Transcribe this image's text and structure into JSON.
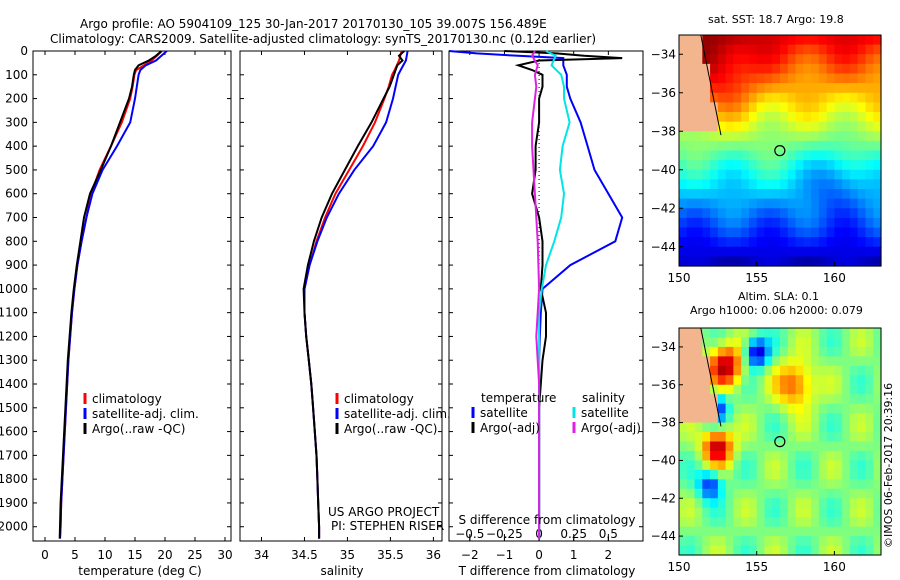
{
  "header": {
    "line1": "Argo profile: AO 5904109_125 30-Jan-2017 20170130_105 39.007S 156.489E",
    "line2": "Climatology: CARS2009. Satellite-adjusted climatology: synTS_20170130.nc (0.12d earlier)"
  },
  "colors": {
    "climatology": "#ff0000",
    "satellite": "#0000ff",
    "argo": "#000000",
    "salinity_satellite": "#00e5e5",
    "salinity_argo": "#e020e0",
    "land": "#f2b58e"
  },
  "chart_data": [
    {
      "type": "line",
      "id": "temperature",
      "xlabel": "temperature (deg C)",
      "xlim": [
        -2,
        31
      ],
      "xticks": [
        0,
        5,
        10,
        15,
        20,
        25,
        30
      ],
      "ylim": [
        2060,
        0
      ],
      "yticks": [
        0,
        100,
        200,
        300,
        400,
        500,
        600,
        700,
        800,
        900,
        1000,
        1100,
        1200,
        1300,
        1400,
        1500,
        1600,
        1700,
        1800,
        1900,
        2000
      ],
      "legend": [
        "climatology",
        "satellite-adj. clim.",
        "Argo(..raw -QC)"
      ],
      "series": [
        {
          "name": "climatology",
          "color": "#ff0000",
          "depth": [
            0,
            40,
            60,
            80,
            100,
            150,
            200,
            300,
            400,
            500,
            600,
            700,
            800,
            900,
            1000,
            1100,
            1200,
            1300,
            1400,
            1500,
            1600,
            1700,
            1800,
            1900,
            2000,
            2050
          ],
          "values": [
            19.5,
            17.8,
            16.5,
            15.2,
            14.9,
            14.6,
            14.2,
            12.8,
            11.0,
            9.1,
            7.7,
            6.9,
            6.1,
            5.4,
            4.9,
            4.5,
            4.2,
            3.9,
            3.7,
            3.5,
            3.3,
            3.1,
            2.9,
            2.7,
            2.6,
            2.5
          ]
        },
        {
          "name": "satellite-adj. clim.",
          "color": "#0000ff",
          "depth": [
            0,
            40,
            60,
            80,
            100,
            150,
            200,
            300,
            400,
            500,
            600,
            700,
            800,
            900,
            1000,
            1100,
            1200,
            1300,
            1400,
            1500,
            1600,
            1700,
            1800,
            1900,
            2000,
            2050
          ],
          "values": [
            20.3,
            18.5,
            16.8,
            15.9,
            15.6,
            15.3,
            15.0,
            14.2,
            12.0,
            9.6,
            7.9,
            6.9,
            6.1,
            5.4,
            4.9,
            4.5,
            4.2,
            3.9,
            3.7,
            3.5,
            3.3,
            3.1,
            2.9,
            2.7,
            2.6,
            2.5
          ]
        },
        {
          "name": "Argo(..raw -QC)",
          "color": "#000000",
          "depth": [
            0,
            20,
            40,
            60,
            80,
            100,
            150,
            200,
            300,
            400,
            500,
            600,
            700,
            800,
            900,
            1000,
            1100,
            1200,
            1300,
            1400,
            1500,
            1600,
            1700,
            1800,
            1900,
            2000,
            2050
          ],
          "values": [
            19.4,
            18.5,
            17.3,
            15.6,
            15.0,
            14.8,
            14.5,
            14.0,
            12.5,
            11.0,
            9.3,
            7.5,
            6.5,
            5.9,
            5.3,
            4.8,
            4.4,
            4.1,
            3.8,
            3.6,
            3.4,
            3.2,
            3.0,
            2.8,
            2.6,
            2.5,
            2.45
          ]
        }
      ]
    },
    {
      "type": "line",
      "id": "salinity",
      "xlabel": "salinity",
      "xlim": [
        33.75,
        36.1
      ],
      "xticks": [
        34,
        34.5,
        35,
        35.5,
        36
      ],
      "ylim": [
        2060,
        0
      ],
      "legend": [
        "climatology",
        "satellite-adj. clim.",
        "Argo(..raw -QC)"
      ],
      "series": [
        {
          "name": "climatology",
          "color": "#ff0000",
          "depth": [
            0,
            40,
            80,
            100,
            150,
            200,
            300,
            400,
            500,
            600,
            700,
            800,
            900,
            1000,
            1100,
            1200,
            1300,
            1400,
            1500,
            1600,
            1700,
            1800,
            1900,
            2000,
            2050
          ],
          "values": [
            35.63,
            35.6,
            35.55,
            35.52,
            35.48,
            35.43,
            35.32,
            35.18,
            35.02,
            34.86,
            34.74,
            34.64,
            34.56,
            34.5,
            34.5,
            34.52,
            34.55,
            34.58,
            34.6,
            34.62,
            34.64,
            34.65,
            34.66,
            34.67,
            34.67
          ]
        },
        {
          "name": "satellite-adj. clim.",
          "color": "#0000ff",
          "depth": [
            0,
            40,
            80,
            100,
            150,
            200,
            300,
            400,
            500,
            600,
            700,
            800,
            900,
            1000,
            1100,
            1200,
            1300,
            1400,
            1500,
            1600,
            1700,
            1800,
            1900,
            2000,
            2050
          ],
          "values": [
            35.7,
            35.68,
            35.62,
            35.59,
            35.56,
            35.53,
            35.45,
            35.3,
            35.08,
            34.9,
            34.76,
            34.65,
            34.56,
            34.5,
            34.5,
            34.52,
            34.55,
            34.58,
            34.6,
            34.62,
            34.64,
            34.65,
            34.66,
            34.67,
            34.67
          ]
        },
        {
          "name": "Argo(..raw -QC)",
          "color": "#000000",
          "depth": [
            0,
            20,
            40,
            60,
            80,
            100,
            150,
            200,
            300,
            400,
            500,
            600,
            700,
            800,
            900,
            1000,
            1100,
            1200,
            1300,
            1400,
            1500,
            1600,
            1700,
            1800,
            1900,
            2000,
            2050
          ],
          "values": [
            35.66,
            35.6,
            35.64,
            35.58,
            35.56,
            35.54,
            35.49,
            35.42,
            35.28,
            35.12,
            34.97,
            34.82,
            34.7,
            34.61,
            34.54,
            34.49,
            34.5,
            34.52,
            34.55,
            34.58,
            34.6,
            34.62,
            34.64,
            34.65,
            34.66,
            34.67,
            34.67
          ]
        }
      ]
    },
    {
      "type": "line",
      "id": "difference",
      "xlabel": "T difference from climatology",
      "xlabel_top": "S difference from climatology",
      "xlim": [
        -2.6,
        3.0
      ],
      "xticks": [
        -2,
        -1,
        0,
        1,
        2
      ],
      "xticks_s": [
        -0.5,
        -0.25,
        0,
        0.25,
        0.5
      ],
      "ylim": [
        2060,
        0
      ],
      "legend_titles": [
        "temperature",
        "salinity"
      ],
      "legend": [
        "satellite",
        "Argo(-adj)",
        "satellite",
        "Argo(-adj)"
      ],
      "series": [
        {
          "name": "satellite",
          "variable": "temperature",
          "color": "#0000ff",
          "depth": [
            0,
            10,
            20,
            30,
            60,
            100,
            150,
            200,
            300,
            400,
            500,
            600,
            700,
            800,
            900,
            1000,
            1100,
            1200,
            1300,
            1400,
            1500,
            1600,
            1700,
            1800,
            1900,
            2000,
            2050
          ],
          "values": [
            -2.6,
            -1.8,
            -0.6,
            0.7,
            0.7,
            0.8,
            0.8,
            0.9,
            1.2,
            1.4,
            1.6,
            2.0,
            2.4,
            2.2,
            0.9,
            0.1,
            0.05,
            0.02,
            0.0,
            0.0,
            0.0,
            0.0,
            0.0,
            0.0,
            0.0,
            0.0,
            0.0
          ]
        },
        {
          "name": "Argo(-adj)",
          "variable": "temperature",
          "color": "#000000",
          "depth": [
            0,
            10,
            20,
            30,
            40,
            60,
            80,
            100,
            150,
            200,
            300,
            400,
            500,
            600,
            700,
            800,
            900,
            1000,
            1100,
            1200,
            1300,
            1400,
            1500,
            1600,
            1700,
            1800,
            1900,
            2000,
            2050
          ],
          "values": [
            -1.0,
            0.5,
            1.3,
            2.4,
            0.0,
            -0.6,
            -0.2,
            0.1,
            0.1,
            0.0,
            0.0,
            -0.1,
            -0.1,
            -0.2,
            0.0,
            0.1,
            0.1,
            0.05,
            0.2,
            0.2,
            0.1,
            0.05,
            0.0,
            0.0,
            0.0,
            0.0,
            0.0,
            0.0,
            0.0
          ]
        },
        {
          "name": "satellite",
          "variable": "salinity",
          "color": "#00e5e5",
          "depth": [
            0,
            20,
            60,
            100,
            150,
            200,
            300,
            400,
            500,
            600,
            700,
            800,
            900,
            1000,
            1100,
            1200,
            1300,
            1400,
            1500,
            1600,
            1700,
            1800,
            1900,
            2000,
            2050
          ],
          "values": [
            0.05,
            0.12,
            0.09,
            0.16,
            0.18,
            0.18,
            0.22,
            0.17,
            0.15,
            0.18,
            0.16,
            0.11,
            0.05,
            0.02,
            0.0,
            0.0,
            0.0,
            0.0,
            0.0,
            0.0,
            0.0,
            0.0,
            0.0,
            0.0,
            0.0
          ]
        },
        {
          "name": "Argo(-adj)",
          "variable": "salinity",
          "color": "#e020e0",
          "depth": [
            0,
            20,
            60,
            100,
            150,
            200,
            300,
            400,
            500,
            600,
            800,
            1000,
            1200,
            1300,
            1400,
            1500,
            1600,
            1800,
            2000,
            2050
          ],
          "values": [
            -0.03,
            -0.05,
            -0.01,
            -0.03,
            -0.02,
            -0.03,
            -0.05,
            -0.05,
            -0.04,
            -0.03,
            -0.01,
            0.0,
            -0.02,
            -0.01,
            0.0,
            0.0,
            0.0,
            0.0,
            0.0,
            0.0
          ]
        }
      ]
    },
    {
      "type": "heatmap",
      "id": "sst_map",
      "title": "sat. SST: 18.7  Argo: 19.8",
      "xlim": [
        150,
        163
      ],
      "ylim": [
        -45,
        -33
      ],
      "xticks": [
        150,
        155,
        160
      ],
      "yticks": [
        -34,
        -36,
        -38,
        -40,
        -42,
        -44
      ],
      "argo_position": {
        "lon": 156.489,
        "lat": -39.007
      }
    },
    {
      "type": "heatmap",
      "id": "sla_map",
      "title_line1": "Altim. SLA: 0.1",
      "title_line2": "Argo h1000: 0.06 h2000: 0.079",
      "xlim": [
        150,
        163
      ],
      "ylim": [
        -45,
        -33
      ],
      "xticks": [
        150,
        155,
        160
      ],
      "yticks": [
        -34,
        -36,
        -38,
        -40,
        -42,
        -44
      ],
      "argo_position": {
        "lon": 156.489,
        "lat": -39.007
      }
    }
  ],
  "annotations": {
    "project": "US ARGO PROJECT",
    "pi": "PI: STEPHEN RISER",
    "stamp": "©IMOS 06-Feb-2017 20:39:16"
  }
}
